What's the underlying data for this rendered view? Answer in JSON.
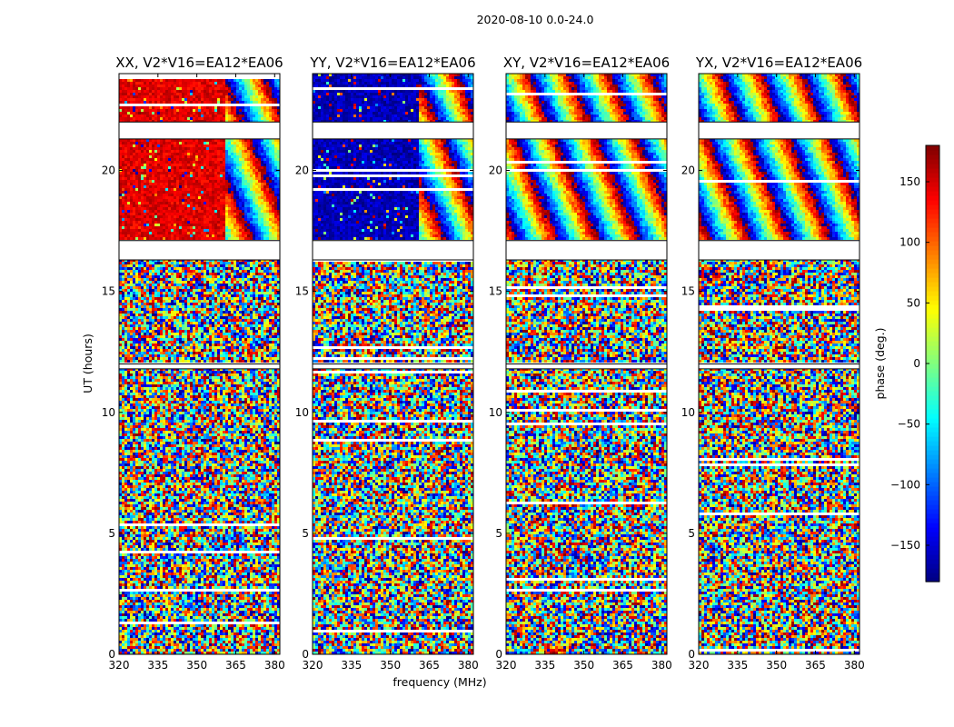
{
  "figure": {
    "suptitle": "2020-08-10 0.0-24.0"
  },
  "chart_data": {
    "type": "heatmap",
    "xlabel": "frequency (MHz)",
    "ylabel": "UT (hours)",
    "xlim": [
      320,
      382
    ],
    "ylim": [
      0,
      24
    ],
    "xticks": [
      320,
      335,
      350,
      365,
      380
    ],
    "yticks": [
      0,
      5,
      10,
      15,
      20
    ],
    "panels": [
      {
        "title": "XX, V2*V16=EA12*EA06",
        "pol": "XX"
      },
      {
        "title": "YY, V2*V16=EA12*EA06",
        "pol": "YY"
      },
      {
        "title": "XY, V2*V16=EA12*EA06",
        "pol": "XY"
      },
      {
        "title": "YX, V2*V16=EA12*EA06",
        "pol": "YX"
      }
    ],
    "colorbar": {
      "label": "phase (deg.)",
      "range": [
        -180,
        180
      ],
      "ticks": [
        -150,
        -100,
        -50,
        0,
        50,
        100,
        150
      ],
      "colormap": "jet"
    },
    "gaps_hours": [
      [
        21.3,
        22.0
      ],
      [
        16.3,
        17.1
      ],
      [
        11.8,
        12.0
      ]
    ],
    "coherent_region": {
      "ut_range": [
        17.1,
        24.0
      ],
      "coherent_until_freq": 361,
      "xx_phase_deg": 145,
      "yy_phase_deg": -160
    }
  }
}
